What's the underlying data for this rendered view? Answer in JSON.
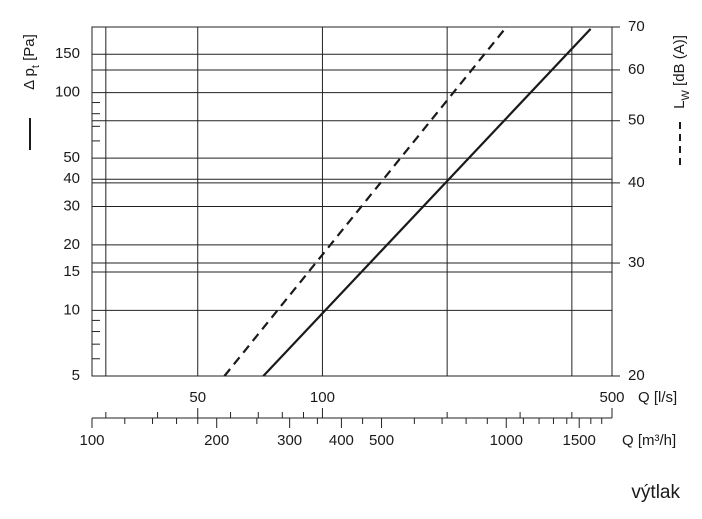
{
  "chart_data": {
    "type": "line",
    "xlabel": "Q [l/s]",
    "x2label": "Q [m³/h]",
    "ylabel": [
      "Δ p",
      "t",
      " [Pa]"
    ],
    "y2label": [
      "L",
      "W",
      " [dB (A)]"
    ],
    "footer": "výtlak",
    "xscale": "log",
    "yscale": "log",
    "y2scale": "log",
    "x2scale": "log",
    "xlim": [
      27.78,
      500
    ],
    "xticks": [
      50,
      100,
      500
    ],
    "xgrid": [
      30,
      50,
      100,
      200,
      400
    ],
    "xminorticks": [
      30,
      40,
      60,
      70,
      80,
      90,
      200,
      300,
      400
    ],
    "x2lim": [
      100,
      1800
    ],
    "x2ticks": [
      100,
      200,
      300,
      400,
      500,
      1000,
      1500
    ],
    "x2minorticks": [
      120,
      140,
      160,
      180,
      250,
      350,
      450,
      600,
      700,
      800,
      900,
      1100,
      1200,
      1300,
      1400,
      1600,
      1700
    ],
    "ylim": [
      5,
      200
    ],
    "yticks": [
      5,
      10,
      15,
      20,
      30,
      40,
      50,
      100,
      150
    ],
    "yminorticks": [
      6,
      7,
      8,
      9,
      60,
      70,
      80,
      90
    ],
    "y2lim": [
      20,
      70
    ],
    "y2ticks": [
      20,
      30,
      40,
      50,
      60,
      70
    ],
    "grid": true,
    "series": [
      {
        "x": [
          72,
          444
        ],
        "values": [
          5,
          196
        ],
        "color": "#1a1a1a",
        "dashed": false
      },
      {
        "x": [
          58,
          278
        ],
        "values": [
          20,
          70
        ],
        "color": "#1a1a1a",
        "dashed": true,
        "axis": "y2"
      }
    ]
  }
}
